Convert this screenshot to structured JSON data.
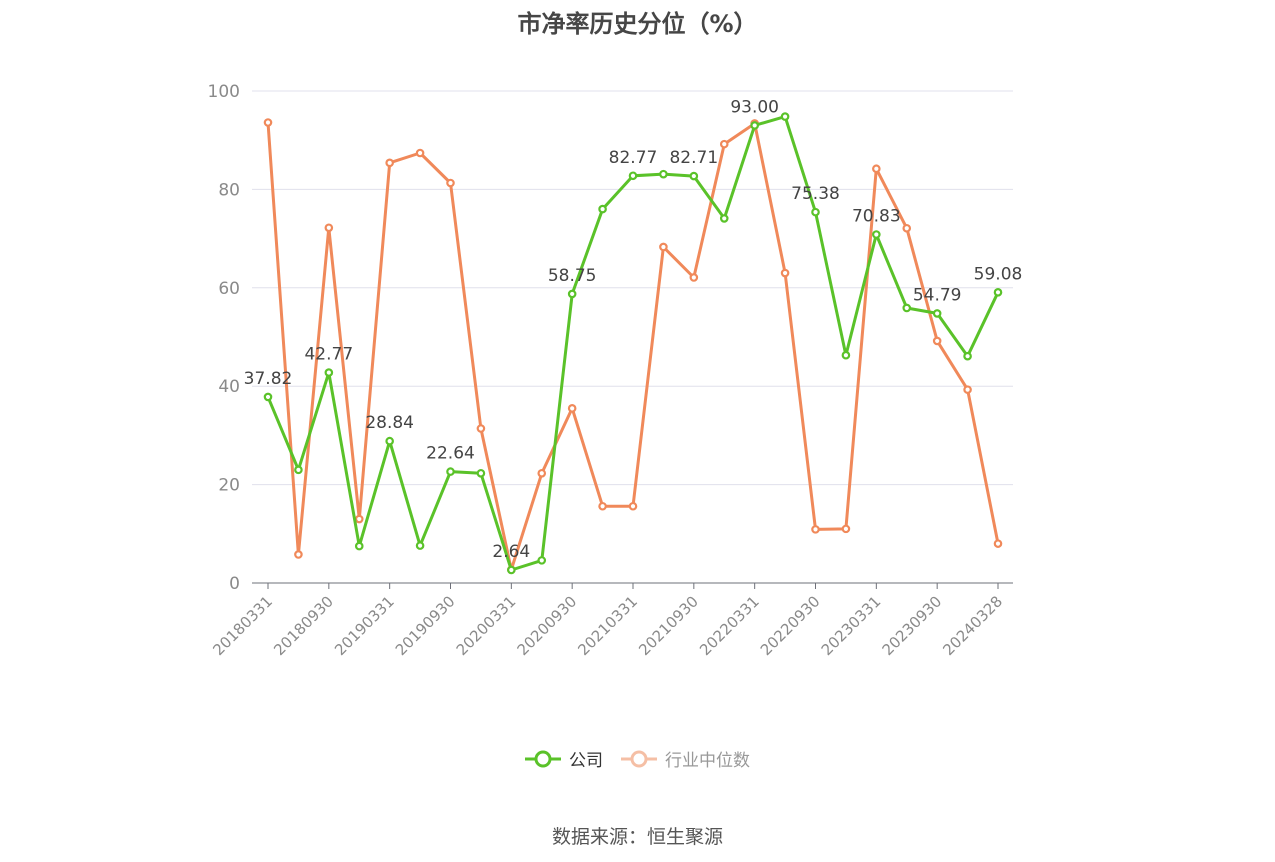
{
  "chart_data": {
    "type": "line",
    "title": "市净率历史分位（%）",
    "ylim": [
      0,
      100
    ],
    "yticks": [
      0,
      20,
      40,
      60,
      80,
      100
    ],
    "x": [
      "20180331",
      "20180630",
      "20180930",
      "20181231",
      "20190331",
      "20190630",
      "20190930",
      "20191231",
      "20200331",
      "20200630",
      "20200930",
      "20201231",
      "20210331",
      "20210630",
      "20210930",
      "20211231",
      "20220331",
      "20220630",
      "20220930",
      "20221231",
      "20230331",
      "20230630",
      "20230930",
      "20231231",
      "20240328"
    ],
    "x_tick_labels": [
      "20180331",
      "20180930",
      "20190331",
      "20190930",
      "20200331",
      "20200930",
      "20210331",
      "20210930",
      "20220331",
      "20220930",
      "20230331",
      "20230930",
      "20240328"
    ],
    "series": [
      {
        "name": "公司",
        "color": "#5ac229",
        "values": [
          37.82,
          23.0,
          42.77,
          7.5,
          28.84,
          7.6,
          22.64,
          22.3,
          2.64,
          4.6,
          58.75,
          76.0,
          82.77,
          83.1,
          82.71,
          74.1,
          93.0,
          94.8,
          75.38,
          46.3,
          70.83,
          55.9,
          54.79,
          46.1,
          59.08
        ],
        "labels": [
          "37.82",
          null,
          "42.77",
          null,
          "28.84",
          null,
          "22.64",
          null,
          "2.64",
          null,
          "58.75",
          null,
          "82.77",
          null,
          "82.71",
          null,
          "93.00",
          null,
          "75.38",
          null,
          "70.83",
          null,
          "54.79",
          null,
          "59.08"
        ]
      },
      {
        "name": "行业中位数",
        "color": "#f0895a",
        "values": [
          93.6,
          5.8,
          72.2,
          13.0,
          85.4,
          87.4,
          81.3,
          31.4,
          2.7,
          22.3,
          35.5,
          15.6,
          15.6,
          68.3,
          62.1,
          89.2,
          93.4,
          63.0,
          10.9,
          11.0,
          84.2,
          72.1,
          49.2,
          39.3,
          8.0
        ]
      }
    ],
    "legend_position": "bottom",
    "grid": true
  },
  "source": "数据来源：恒生聚源"
}
